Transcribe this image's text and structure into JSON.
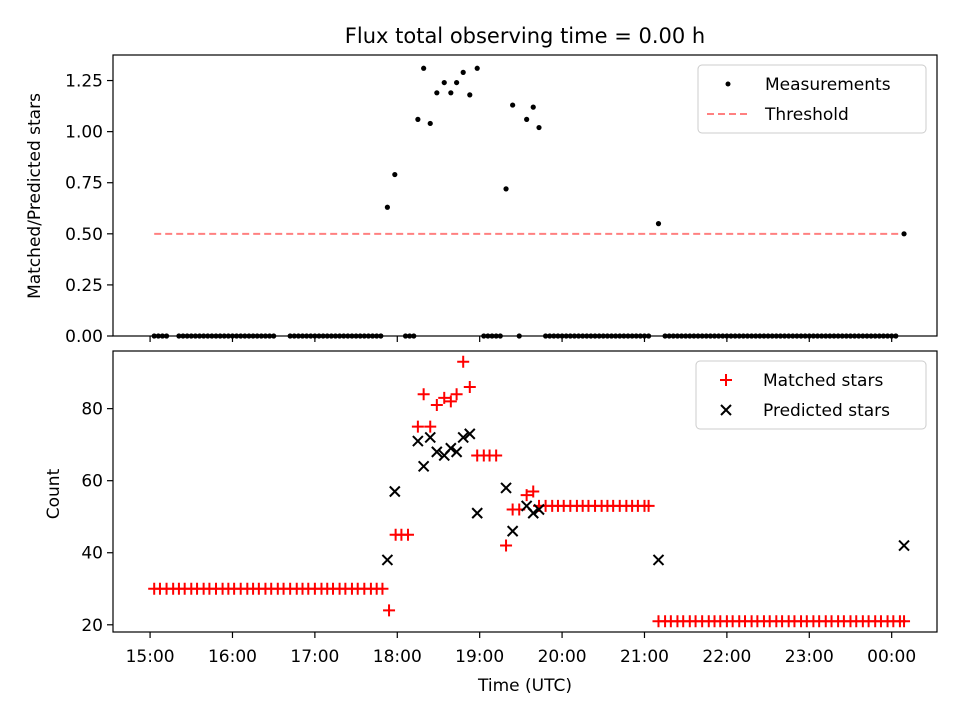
{
  "chart_data": [
    {
      "type": "scatter",
      "panel": "top",
      "title": "Flux total observing time = 0.00 h",
      "xlabel": "",
      "ylabel": "Matched/Predicted stars",
      "xlim": [
        14.55,
        24.55
      ],
      "ylim": [
        0.0,
        1.375
      ],
      "yticks": [
        "0.00",
        "0.25",
        "0.50",
        "0.75",
        "1.00",
        "1.25"
      ],
      "yticks_values": [
        0.0,
        0.25,
        0.5,
        0.75,
        1.0,
        1.25
      ],
      "legend_position": "upper right",
      "legend": [
        "Measurements",
        "Threshold"
      ],
      "series": [
        {
          "name": "Measurements",
          "kind": "dots",
          "color": "#000000",
          "x": [
            15.05,
            15.1,
            15.15,
            15.2,
            15.35,
            15.4,
            15.45,
            15.5,
            15.55,
            15.6,
            15.65,
            15.7,
            15.75,
            15.8,
            15.85,
            15.9,
            15.95,
            16.0,
            16.05,
            16.1,
            16.15,
            16.2,
            16.25,
            16.3,
            16.35,
            16.4,
            16.45,
            16.5,
            16.7,
            16.75,
            16.8,
            16.85,
            16.9,
            16.95,
            17.0,
            17.05,
            17.1,
            17.15,
            17.2,
            17.25,
            17.3,
            17.35,
            17.4,
            17.45,
            17.5,
            17.55,
            17.6,
            17.65,
            17.7,
            17.75,
            17.8,
            17.88,
            17.97,
            18.1,
            18.15,
            18.2,
            18.25,
            18.32,
            18.4,
            18.48,
            18.57,
            18.65,
            18.72,
            18.8,
            18.88,
            18.97,
            19.05,
            19.1,
            19.15,
            19.2,
            19.25,
            19.32,
            19.4,
            19.48,
            19.57,
            19.65,
            19.72,
            19.8,
            19.85,
            19.9,
            19.95,
            20.0,
            20.05,
            20.1,
            20.15,
            20.2,
            20.25,
            20.3,
            20.35,
            20.4,
            20.45,
            20.5,
            20.55,
            20.6,
            20.65,
            20.7,
            20.75,
            20.8,
            20.85,
            20.9,
            20.95,
            21.0,
            21.05,
            21.17,
            21.25,
            21.3,
            21.35,
            21.4,
            21.45,
            21.5,
            21.55,
            21.6,
            21.65,
            21.7,
            21.75,
            21.8,
            21.85,
            21.9,
            21.95,
            22.0,
            22.05,
            22.1,
            22.15,
            22.2,
            22.25,
            22.3,
            22.35,
            22.4,
            22.45,
            22.5,
            22.55,
            22.6,
            22.65,
            22.7,
            22.75,
            22.8,
            22.85,
            22.9,
            22.95,
            23.0,
            23.05,
            23.1,
            23.15,
            23.2,
            23.25,
            23.3,
            23.35,
            23.4,
            23.45,
            23.5,
            23.55,
            23.6,
            23.65,
            23.7,
            23.75,
            23.8,
            23.85,
            23.9,
            23.95,
            24.0,
            24.05,
            24.15
          ],
          "y": [
            0,
            0,
            0,
            0,
            0,
            0,
            0,
            0,
            0,
            0,
            0,
            0,
            0,
            0,
            0,
            0,
            0,
            0,
            0,
            0,
            0,
            0,
            0,
            0,
            0,
            0,
            0,
            0,
            0,
            0,
            0,
            0,
            0,
            0,
            0,
            0,
            0,
            0,
            0,
            0,
            0,
            0,
            0,
            0,
            0,
            0,
            0,
            0,
            0,
            0,
            0,
            0.63,
            0.79,
            0,
            0,
            0,
            1.06,
            1.31,
            1.04,
            1.19,
            1.24,
            1.19,
            1.24,
            1.29,
            1.18,
            1.31,
            0,
            0,
            0,
            0,
            0,
            0.72,
            1.13,
            0,
            1.06,
            1.12,
            1.02,
            0,
            0,
            0,
            0,
            0,
            0,
            0,
            0,
            0,
            0,
            0,
            0,
            0,
            0,
            0,
            0,
            0,
            0,
            0,
            0,
            0,
            0,
            0,
            0,
            0,
            0,
            0.55,
            0,
            0,
            0,
            0,
            0,
            0,
            0,
            0,
            0,
            0,
            0,
            0,
            0,
            0,
            0,
            0,
            0,
            0,
            0,
            0,
            0,
            0,
            0,
            0,
            0,
            0,
            0,
            0,
            0,
            0,
            0,
            0,
            0,
            0,
            0,
            0,
            0,
            0,
            0,
            0,
            0,
            0,
            0,
            0,
            0,
            0,
            0,
            0,
            0,
            0,
            0,
            0,
            0,
            0,
            0,
            0,
            0,
            0.5
          ]
        },
        {
          "name": "Threshold",
          "kind": "dashed-line",
          "color": "#ff8080",
          "x": [
            15.05,
            24.15
          ],
          "y": [
            0.5,
            0.5
          ]
        }
      ]
    },
    {
      "type": "scatter",
      "panel": "bottom",
      "title": "",
      "xlabel": "Time (UTC)",
      "ylabel": "Count",
      "xlim": [
        14.55,
        24.55
      ],
      "ylim": [
        18,
        96
      ],
      "yticks": [
        "20",
        "40",
        "60",
        "80"
      ],
      "yticks_values": [
        20,
        40,
        60,
        80
      ],
      "xticks": [
        "15:00",
        "16:00",
        "17:00",
        "18:00",
        "19:00",
        "20:00",
        "21:00",
        "22:00",
        "23:00",
        "00:00"
      ],
      "xticks_values": [
        15,
        16,
        17,
        18,
        19,
        20,
        21,
        22,
        23,
        24
      ],
      "legend_position": "upper right",
      "legend": [
        "Matched stars",
        "Predicted stars"
      ],
      "series": [
        {
          "name": "Matched stars",
          "kind": "plus",
          "color": "#ff0000",
          "x": [
            15.05,
            15.12,
            15.2,
            15.28,
            15.35,
            15.42,
            15.5,
            15.57,
            15.65,
            15.72,
            15.8,
            15.88,
            15.95,
            16.02,
            16.1,
            16.18,
            16.25,
            16.32,
            16.4,
            16.47,
            16.55,
            16.62,
            16.7,
            16.78,
            16.85,
            16.92,
            17.0,
            17.08,
            17.15,
            17.22,
            17.3,
            17.37,
            17.45,
            17.52,
            17.6,
            17.68,
            17.75,
            17.82,
            17.9,
            17.98,
            18.05,
            18.13,
            18.25,
            18.32,
            18.4,
            18.48,
            18.57,
            18.65,
            18.72,
            18.8,
            18.88,
            18.97,
            19.05,
            19.12,
            19.2,
            19.32,
            19.4,
            19.48,
            19.57,
            19.65,
            19.72,
            19.8,
            19.88,
            19.95,
            20.02,
            20.1,
            20.18,
            20.25,
            20.32,
            20.4,
            20.48,
            20.55,
            20.62,
            20.7,
            20.78,
            20.85,
            20.92,
            21.0,
            21.05,
            21.17,
            21.25,
            21.32,
            21.4,
            21.47,
            21.55,
            21.62,
            21.7,
            21.78,
            21.85,
            21.92,
            22.0,
            22.07,
            22.15,
            22.22,
            22.3,
            22.37,
            22.45,
            22.52,
            22.6,
            22.67,
            22.75,
            22.82,
            22.9,
            22.97,
            23.05,
            23.12,
            23.2,
            23.27,
            23.35,
            23.42,
            23.5,
            23.57,
            23.65,
            23.72,
            23.8,
            23.87,
            23.95,
            24.02,
            24.1,
            24.15
          ],
          "y": [
            30,
            30,
            30,
            30,
            30,
            30,
            30,
            30,
            30,
            30,
            30,
            30,
            30,
            30,
            30,
            30,
            30,
            30,
            30,
            30,
            30,
            30,
            30,
            30,
            30,
            30,
            30,
            30,
            30,
            30,
            30,
            30,
            30,
            30,
            30,
            30,
            30,
            30,
            24,
            45,
            45,
            45,
            75,
            84,
            75,
            81,
            83,
            82,
            84,
            93,
            86,
            67,
            67,
            67,
            67,
            42,
            52,
            52,
            56,
            57,
            53,
            53,
            53,
            53,
            53,
            53,
            53,
            53,
            53,
            53,
            53,
            53,
            53,
            53,
            53,
            53,
            53,
            53,
            53,
            21,
            21,
            21,
            21,
            21,
            21,
            21,
            21,
            21,
            21,
            21,
            21,
            21,
            21,
            21,
            21,
            21,
            21,
            21,
            21,
            21,
            21,
            21,
            21,
            21,
            21,
            21,
            21,
            21,
            21,
            21,
            21,
            21,
            21,
            21,
            21,
            21,
            21,
            21,
            21,
            21
          ]
        },
        {
          "name": "Predicted stars",
          "kind": "x",
          "color": "#000000",
          "x": [
            17.88,
            17.97,
            18.25,
            18.32,
            18.4,
            18.48,
            18.57,
            18.65,
            18.72,
            18.8,
            18.88,
            18.97,
            19.32,
            19.4,
            19.57,
            19.65,
            19.72,
            21.17,
            24.15
          ],
          "y": [
            38,
            57,
            71,
            64,
            72,
            68,
            67,
            69,
            68,
            72,
            73,
            51,
            58,
            46,
            53,
            51,
            52,
            38,
            42
          ]
        }
      ]
    }
  ]
}
